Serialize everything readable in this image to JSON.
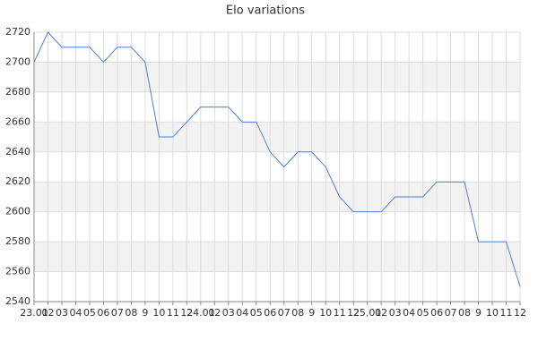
{
  "chart_data": {
    "type": "line",
    "title": "Elo variations",
    "categories": [
      "23.01",
      "02",
      "03",
      "04",
      "05",
      "06",
      "07",
      "08",
      "9",
      "10",
      "11",
      "12",
      "24.01",
      "02",
      "03",
      "04",
      "05",
      "06",
      "07",
      "08",
      "9",
      "10",
      "11",
      "12",
      "25.01",
      "02",
      "03",
      "04",
      "05",
      "06",
      "07",
      "08",
      "9",
      "10",
      "11",
      "12"
    ],
    "series": [
      {
        "name": "Elo",
        "color": "#4a7fd6",
        "values": [
          2700,
          2720,
          2710,
          2710,
          2710,
          2700,
          2710,
          2710,
          2700,
          2650,
          2650,
          2660,
          2670,
          2670,
          2670,
          2660,
          2660,
          2640,
          2630,
          2640,
          2640,
          2630,
          2610,
          2600,
          2600,
          2600,
          2610,
          2610,
          2610,
          2620,
          2620,
          2620,
          2580,
          2580,
          2580,
          2550
        ]
      }
    ],
    "ylim": [
      2540,
      2720
    ],
    "yticks": [
      2540,
      2560,
      2580,
      2600,
      2620,
      2640,
      2660,
      2680,
      2700,
      2720
    ],
    "grid": true
  }
}
